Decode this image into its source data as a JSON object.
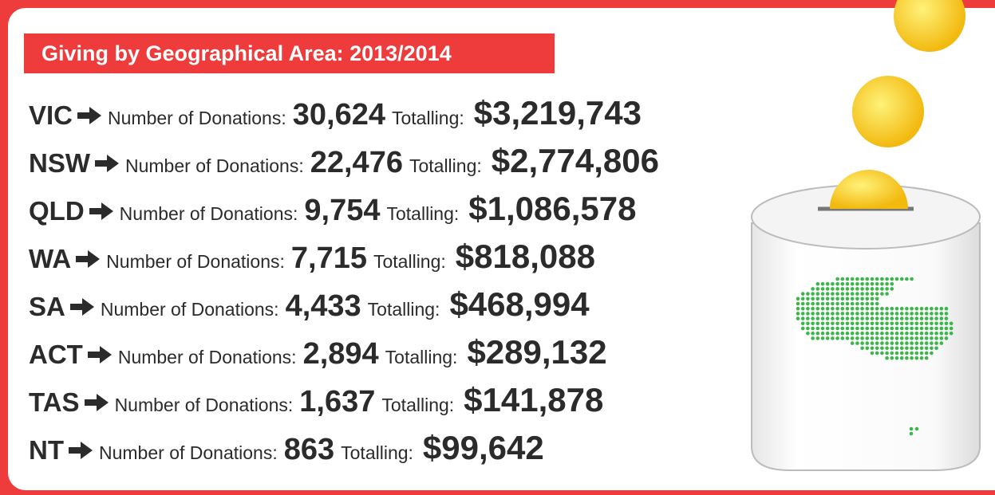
{
  "header": {
    "title": "Giving by Geographical Area: 2013/2014"
  },
  "rows": [
    {
      "state": "VIC",
      "count_label": "Number of Donations:",
      "count": "30,624",
      "total_label": "Totalling:",
      "total": "$3,219,743"
    },
    {
      "state": "NSW",
      "count_label": "Number of Donations:",
      "count": "22,476",
      "total_label": "Totalling:",
      "total": "$2,774,806"
    },
    {
      "state": "QLD",
      "count_label": "Number of Donations:",
      "count": "9,754",
      "total_label": "Totalling:",
      "total": "$1,086,578"
    },
    {
      "state": "WA",
      "count_label": "Number of Donations:",
      "count": "7,715",
      "total_label": "Totalling:",
      "total": "$818,088"
    },
    {
      "state": "SA",
      "count_label": "Number of Donations:",
      "count": "4,433",
      "total_label": "Totalling:",
      "total": "$468,994"
    },
    {
      "state": "ACT",
      "count_label": "Number of Donations:",
      "count": "2,894",
      "total_label": "Totalling:",
      "total": "$289,132"
    },
    {
      "state": "TAS",
      "count_label": "Number of Donations:",
      "count": "1,637",
      "total_label": "Totalling:",
      "total": "$141,878"
    },
    {
      "state": "NT",
      "count_label": "Number of Donations:",
      "count": "863",
      "total_label": "Totalling:",
      "total": "$99,642"
    }
  ]
}
